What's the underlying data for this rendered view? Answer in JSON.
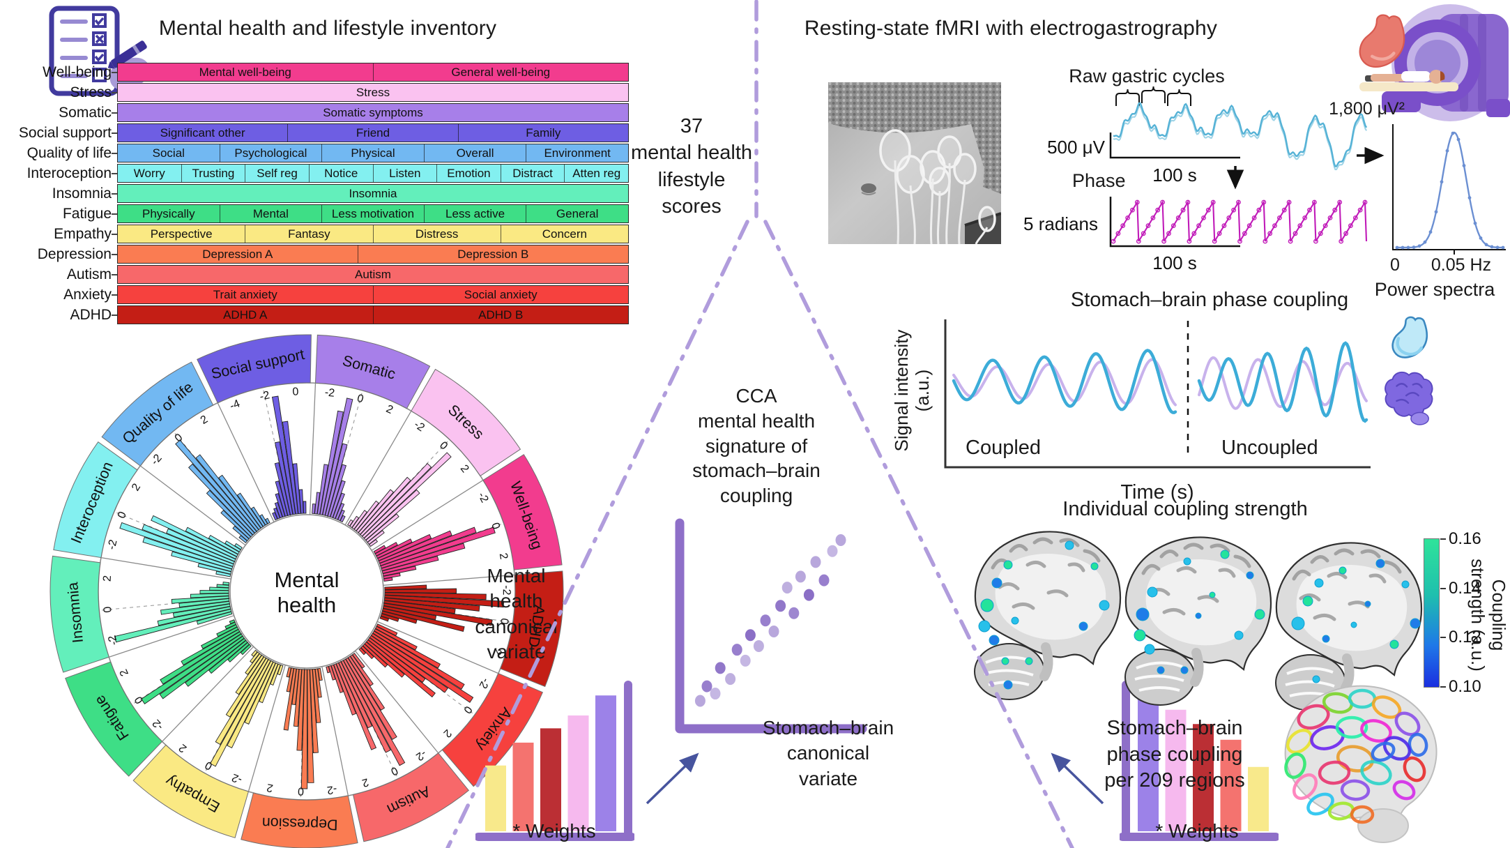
{
  "inventory": {
    "title": "Mental health and lifestyle inventory",
    "rows": [
      {
        "label": "Well-being",
        "color": "#F23C8E",
        "cells": [
          {
            "t": "Mental well-being",
            "w": 1
          },
          {
            "t": "General well-being",
            "w": 1
          }
        ]
      },
      {
        "label": "Stress",
        "color": "#FAC2F0",
        "cells": [
          {
            "t": "Stress",
            "w": 1
          }
        ]
      },
      {
        "label": "Somatic",
        "color": "#A77FE9",
        "cells": [
          {
            "t": "Somatic symptoms",
            "w": 1
          }
        ]
      },
      {
        "label": "Social support",
        "color": "#6E5EE3",
        "cells": [
          {
            "t": "Significant other",
            "w": 1
          },
          {
            "t": "Friend",
            "w": 1
          },
          {
            "t": "Family",
            "w": 1
          }
        ]
      },
      {
        "label": "Quality of life",
        "color": "#72B8F2",
        "cells": [
          {
            "t": "Social",
            "w": 1
          },
          {
            "t": "Psychological",
            "w": 1
          },
          {
            "t": "Physical",
            "w": 1
          },
          {
            "t": "Overall",
            "w": 1
          },
          {
            "t": "Environment",
            "w": 1
          }
        ]
      },
      {
        "label": "Interoception",
        "color": "#83F0F0",
        "cells": [
          {
            "t": "Worry",
            "w": 1
          },
          {
            "t": "Trusting",
            "w": 1
          },
          {
            "t": "Self reg",
            "w": 1
          },
          {
            "t": "Notice",
            "w": 1
          },
          {
            "t": "Listen",
            "w": 1
          },
          {
            "t": "Emotion",
            "w": 1
          },
          {
            "t": "Distract",
            "w": 1
          },
          {
            "t": "Atten reg",
            "w": 1
          }
        ]
      },
      {
        "label": "Insomnia",
        "color": "#63EFBB",
        "cells": [
          {
            "t": "Insomnia",
            "w": 1
          }
        ]
      },
      {
        "label": "Fatigue",
        "color": "#3EDE86",
        "cells": [
          {
            "t": "Physically",
            "w": 1
          },
          {
            "t": "Mental",
            "w": 1
          },
          {
            "t": "Less motivation",
            "w": 1
          },
          {
            "t": "Less active",
            "w": 1
          },
          {
            "t": "General",
            "w": 1
          }
        ]
      },
      {
        "label": "Empathy",
        "color": "#FAE983",
        "cells": [
          {
            "t": "Perspective",
            "w": 1
          },
          {
            "t": "Fantasy",
            "w": 1
          },
          {
            "t": "Distress",
            "w": 1
          },
          {
            "t": "Concern",
            "w": 1
          }
        ]
      },
      {
        "label": "Depression",
        "color": "#FA7C52",
        "cells": [
          {
            "t": "Depression A",
            "w": 47
          },
          {
            "t": "Depression B",
            "w": 53
          }
        ]
      },
      {
        "label": "Autism",
        "color": "#F7686A",
        "cells": [
          {
            "t": "Autism",
            "w": 1
          }
        ]
      },
      {
        "label": "Anxiety",
        "color": "#F6413E",
        "cells": [
          {
            "t": "Trait anxiety",
            "w": 1
          },
          {
            "t": "Social anxiety",
            "w": 1
          }
        ]
      },
      {
        "label": "ADHD",
        "color": "#C41E15",
        "cells": [
          {
            "t": "ADHD A",
            "w": 1
          },
          {
            "t": "ADHD B",
            "w": 1
          }
        ]
      }
    ]
  },
  "score_note": "37\nmental health\nlifestyle\nscores",
  "wheel": {
    "center_label": "Mental\nhealth",
    "start_angle_deg": -116,
    "segments": [
      {
        "label": "Social support",
        "color": "#6E5EE3",
        "ticks": [
          "-4",
          "-2",
          "0"
        ],
        "bars": [
          0.06,
          0.09,
          0.13,
          0.2,
          0.3,
          0.45,
          0.62,
          1.0,
          0.78,
          0.42,
          0.2,
          0.1
        ]
      },
      {
        "label": "Somatic",
        "color": "#A77FE9",
        "ticks": [
          "-2",
          "0",
          "2"
        ],
        "bars": [
          0.08,
          0.18,
          0.42,
          0.88,
          1.0,
          0.62,
          0.45,
          0.32,
          0.22,
          0.14,
          0.09,
          0.05
        ]
      },
      {
        "label": "Stress",
        "color": "#FAC2F0",
        "ticks": [
          "-2",
          "0",
          "2"
        ],
        "bars": [
          0.05,
          0.1,
          0.18,
          0.3,
          0.45,
          0.62,
          0.82,
          1.0,
          0.6,
          0.34,
          0.16,
          0.07
        ]
      },
      {
        "label": "Well-being",
        "color": "#F23C8E",
        "ticks": [
          "-2",
          "0",
          "2"
        ],
        "bars": [
          0.1,
          0.2,
          0.32,
          0.48,
          0.65,
          0.85,
          1.0,
          0.72,
          0.48,
          0.28,
          0.14,
          0.07
        ]
      },
      {
        "label": "ADHD",
        "color": "#C41E15",
        "ticks": [
          "-2",
          "0",
          "2"
        ],
        "bars": [
          0.35,
          0.6,
          0.85,
          1.0,
          0.8,
          0.6,
          0.92,
          0.45,
          0.7,
          0.3,
          0.15,
          0.07
        ]
      },
      {
        "label": "Anxiety",
        "color": "#F6413E",
        "ticks": [
          "-2",
          "0",
          "2"
        ],
        "bars": [
          0.18,
          0.38,
          0.62,
          0.88,
          1.0,
          0.78,
          0.58,
          0.72,
          0.42,
          0.26,
          0.13,
          0.06
        ]
      },
      {
        "label": "Autism",
        "color": "#F7686A",
        "ticks": [
          "-2",
          "0",
          "2"
        ],
        "bars": [
          0.14,
          0.3,
          0.52,
          0.78,
          1.0,
          0.85,
          0.6,
          0.78,
          0.45,
          0.24,
          0.12,
          0.05
        ]
      },
      {
        "label": "Depression",
        "color": "#FA7C52",
        "ticks": [
          "-2",
          "0",
          "2"
        ],
        "bars": [
          0.1,
          0.24,
          0.45,
          0.7,
          0.95,
          1.0,
          0.68,
          0.48,
          0.3,
          0.52,
          0.2,
          0.08
        ]
      },
      {
        "label": "Empathy",
        "color": "#FAE983",
        "ticks": [
          "-2",
          "0",
          "2"
        ],
        "bars": [
          0.08,
          0.18,
          0.35,
          0.56,
          0.8,
          1.0,
          0.82,
          0.58,
          0.38,
          0.2,
          0.1,
          0.05
        ]
      },
      {
        "label": "Fatigue",
        "color": "#3EDE86",
        "ticks": [
          "-2",
          "0",
          "2"
        ],
        "bars": [
          0.1,
          0.22,
          0.4,
          0.62,
          0.85,
          1.0,
          0.78,
          0.55,
          0.34,
          0.18,
          0.09,
          0.04
        ]
      },
      {
        "label": "Insomnia",
        "color": "#63EFBB",
        "ticks": [
          "-2",
          "0",
          "2"
        ],
        "bars": [
          0.3,
          1.0,
          0.62,
          0.48,
          0.58,
          0.42,
          0.48,
          0.32,
          0.24,
          0.16,
          0.1,
          0.05
        ]
      },
      {
        "label": "Interoception",
        "color": "#83F0F0",
        "ticks": [
          "-2",
          "0",
          "2"
        ],
        "bars": [
          0.12,
          0.28,
          0.52,
          0.78,
          1.0,
          0.82,
          0.62,
          0.78,
          0.48,
          0.28,
          0.14,
          0.06
        ]
      },
      {
        "label": "Quality of life",
        "color": "#72B8F2",
        "ticks": [
          "-2",
          "0",
          "2"
        ],
        "bars": [
          0.07,
          0.16,
          0.32,
          0.52,
          0.78,
          1.0,
          0.8,
          0.55,
          0.34,
          0.18,
          0.09,
          0.04
        ]
      }
    ]
  },
  "cca_note": "CCA\nmental health\nsignature of\nstomach–brain\ncoupling",
  "scatter": {
    "ylabel": "Mental\nhealth\ncanonical\nvariate",
    "points": [
      [
        0.06,
        0.92,
        0.55
      ],
      [
        0.1,
        0.84,
        0.8
      ],
      [
        0.15,
        0.88,
        0.45
      ],
      [
        0.18,
        0.74,
        0.85
      ],
      [
        0.24,
        0.8,
        0.5
      ],
      [
        0.28,
        0.64,
        0.8
      ],
      [
        0.33,
        0.7,
        0.45
      ],
      [
        0.36,
        0.56,
        0.9
      ],
      [
        0.41,
        0.62,
        0.5
      ],
      [
        0.45,
        0.48,
        0.8
      ],
      [
        0.5,
        0.54,
        0.55
      ],
      [
        0.54,
        0.4,
        0.85
      ],
      [
        0.58,
        0.3,
        0.5
      ],
      [
        0.62,
        0.44,
        0.75
      ],
      [
        0.66,
        0.24,
        0.55
      ],
      [
        0.71,
        0.34,
        0.9
      ],
      [
        0.75,
        0.16,
        0.55
      ],
      [
        0.8,
        0.26,
        0.8
      ],
      [
        0.85,
        0.1,
        0.45
      ],
      [
        0.9,
        0.04,
        0.55
      ]
    ],
    "dot_color": "#7e5fc0"
  },
  "canonical": {
    "sb_label": "Stomach–brain\ncanonical\nvariate"
  },
  "weights": {
    "left": {
      "label": "* Weights",
      "bars": [
        {
          "c": "#F8E98B",
          "h": 0.46
        },
        {
          "c": "#F4736F",
          "h": 0.62
        },
        {
          "c": "#BB2F34",
          "h": 0.72
        },
        {
          "c": "#F6B9EE",
          "h": 0.81
        },
        {
          "c": "#9C82E8",
          "h": 0.95
        }
      ]
    },
    "right": {
      "label": "* Weights",
      "bars": [
        {
          "c": "#9C82E8",
          "h": 0.95
        },
        {
          "c": "#F6B9EE",
          "h": 0.85
        },
        {
          "c": "#BB2F34",
          "h": 0.75
        },
        {
          "c": "#F4736F",
          "h": 0.64
        },
        {
          "c": "#F8E98B",
          "h": 0.45
        }
      ]
    },
    "axis_color": "#8E6FC8",
    "arrow_color": "#47549E"
  },
  "egg": {
    "title": "Resting-state fMRI with electrogastrography",
    "raw_title": "Raw gastric cycles",
    "raw_ylabel": "500 μV",
    "raw_xlabel": "100 s",
    "phase_title": "Phase",
    "phase_ylabel": "5 radians",
    "phase_xlabel": "100 s",
    "power_peak": "1,800 μV²",
    "power_tick0": "0",
    "power_tick1": "0.05 Hz",
    "power_label": "Power spectra",
    "raw_color": "#55B2D6",
    "phase_color": "#C01AB8",
    "power_color": "#6B8FD2"
  },
  "coupling": {
    "title": "Stomach–brain phase coupling",
    "ylabel": "Signal intensity\n(a.u.)",
    "xlabel": "Time (s)",
    "coupled": "Coupled",
    "uncoupled": "Uncoupled",
    "stomach_color": "#3CACD8",
    "brain_color": "#C8B2EC"
  },
  "individual": {
    "title": "Individual coupling strength",
    "cb_ticks": [
      "0.16",
      "0.14",
      "0.12",
      "0.10"
    ],
    "cb_label": "Coupling\nstrength (a.u.)"
  },
  "regions_note": "Stomach–brain\nphase coupling\nper 209 regions",
  "divider_color": "#B09CDC"
}
